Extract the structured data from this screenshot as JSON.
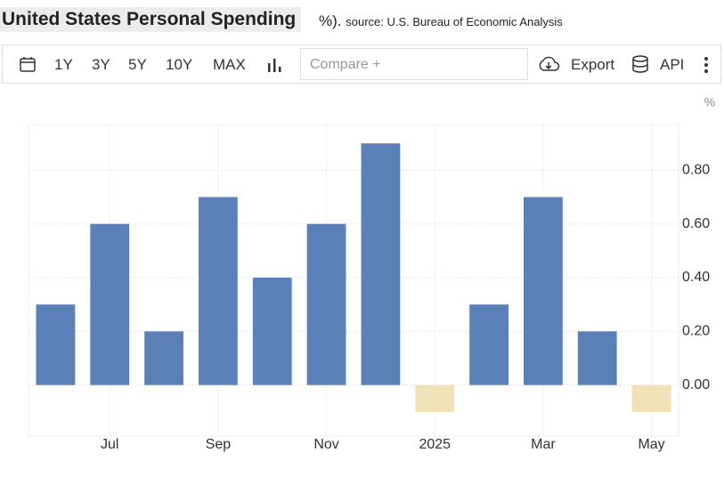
{
  "header": {
    "title": "United States Personal Spending",
    "suffix": "%).",
    "source": "source: U.S. Bureau of Economic Analysis"
  },
  "toolbar": {
    "ranges": [
      "1Y",
      "3Y",
      "5Y",
      "10Y",
      "MAX"
    ],
    "compare": "Compare +",
    "export": "Export",
    "api": "API"
  },
  "chart_data": {
    "type": "bar",
    "unit": "%",
    "categories": [
      null,
      "Jul",
      null,
      "Sep",
      null,
      "Nov",
      null,
      "2025",
      null,
      "Mar",
      null,
      "May"
    ],
    "values": [
      0.3,
      0.6,
      0.2,
      0.7,
      0.4,
      0.6,
      0.9,
      -0.1,
      0.3,
      0.7,
      0.2,
      -0.1
    ],
    "color": "#5b80b8",
    "negative_color": "#f0e2b6",
    "ylim": [
      -0.19,
      0.97
    ],
    "yticks": [
      {
        "value": 0,
        "label": "0.00"
      },
      {
        "value": 0.2,
        "label": "0.20"
      },
      {
        "value": 0.4,
        "label": "0.40"
      },
      {
        "value": 0.6,
        "label": "0.60"
      },
      {
        "value": 0.8,
        "label": "0.80"
      }
    ],
    "grid": true
  }
}
